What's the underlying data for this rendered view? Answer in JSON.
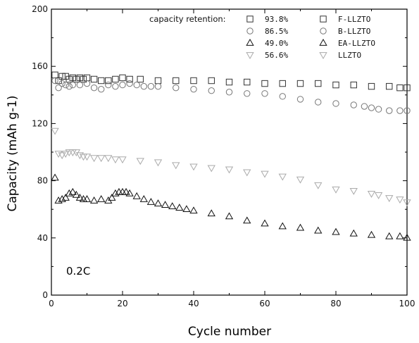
{
  "chart_data": {
    "type": "scatter",
    "title": "",
    "xlabel": "Cycle number",
    "ylabel": "Capacity (mAh g-1)",
    "xlim": [
      0,
      100
    ],
    "ylim": [
      0,
      200
    ],
    "xticks": [
      0,
      20,
      40,
      60,
      80,
      100
    ],
    "yticks": [
      0,
      40,
      80,
      120,
      160,
      200
    ],
    "grid": false,
    "annotation": "0.2C",
    "legend": {
      "position": "top-right",
      "title": "capacity retention:"
    },
    "series": [
      {
        "name": "F-LLZTO",
        "retention": "93.8%",
        "marker": "square",
        "color": "#333333",
        "points": [
          [
            1,
            154
          ],
          [
            2,
            150
          ],
          [
            3,
            153
          ],
          [
            4,
            153
          ],
          [
            5,
            151
          ],
          [
            6,
            152
          ],
          [
            7,
            151
          ],
          [
            8,
            152
          ],
          [
            9,
            151
          ],
          [
            10,
            152
          ],
          [
            12,
            151
          ],
          [
            14,
            150
          ],
          [
            16,
            150
          ],
          [
            18,
            151
          ],
          [
            20,
            152
          ],
          [
            22,
            151
          ],
          [
            25,
            151
          ],
          [
            30,
            150
          ],
          [
            35,
            150
          ],
          [
            40,
            150
          ],
          [
            45,
            150
          ],
          [
            50,
            149
          ],
          [
            55,
            149
          ],
          [
            60,
            148
          ],
          [
            65,
            148
          ],
          [
            70,
            148
          ],
          [
            75,
            148
          ],
          [
            80,
            147
          ],
          [
            85,
            147
          ],
          [
            90,
            146
          ],
          [
            95,
            146
          ],
          [
            98,
            145
          ],
          [
            100,
            145
          ]
        ]
      },
      {
        "name": "B-LLZTO",
        "retention": "86.5%",
        "marker": "circle",
        "color": "#777777",
        "points": [
          [
            1,
            150
          ],
          [
            2,
            145
          ],
          [
            3,
            148
          ],
          [
            4,
            147
          ],
          [
            5,
            146
          ],
          [
            6,
            147
          ],
          [
            8,
            147
          ],
          [
            10,
            148
          ],
          [
            12,
            145
          ],
          [
            14,
            144
          ],
          [
            16,
            147
          ],
          [
            18,
            146
          ],
          [
            20,
            147
          ],
          [
            22,
            148
          ],
          [
            24,
            147
          ],
          [
            26,
            146
          ],
          [
            28,
            146
          ],
          [
            30,
            146
          ],
          [
            35,
            145
          ],
          [
            40,
            144
          ],
          [
            45,
            143
          ],
          [
            50,
            142
          ],
          [
            55,
            141
          ],
          [
            60,
            141
          ],
          [
            65,
            139
          ],
          [
            70,
            137
          ],
          [
            75,
            135
          ],
          [
            80,
            134
          ],
          [
            85,
            133
          ],
          [
            88,
            132
          ],
          [
            90,
            131
          ],
          [
            92,
            130
          ],
          [
            95,
            129
          ],
          [
            98,
            129
          ],
          [
            100,
            129
          ]
        ]
      },
      {
        "name": "EA-LLZTO",
        "retention": "49.0%",
        "marker": "triangle-up",
        "color": "#111111",
        "points": [
          [
            1,
            82
          ],
          [
            2,
            66
          ],
          [
            3,
            67
          ],
          [
            4,
            68
          ],
          [
            5,
            71
          ],
          [
            6,
            72
          ],
          [
            7,
            70
          ],
          [
            8,
            68
          ],
          [
            9,
            67
          ],
          [
            10,
            67
          ],
          [
            12,
            66
          ],
          [
            14,
            67
          ],
          [
            16,
            66
          ],
          [
            17,
            68
          ],
          [
            18,
            71
          ],
          [
            19,
            72
          ],
          [
            20,
            72
          ],
          [
            21,
            72
          ],
          [
            22,
            71
          ],
          [
            24,
            69
          ],
          [
            26,
            67
          ],
          [
            28,
            65
          ],
          [
            30,
            64
          ],
          [
            32,
            63
          ],
          [
            34,
            62
          ],
          [
            36,
            61
          ],
          [
            38,
            60
          ],
          [
            40,
            59
          ],
          [
            45,
            57
          ],
          [
            50,
            55
          ],
          [
            55,
            52
          ],
          [
            60,
            50
          ],
          [
            65,
            48
          ],
          [
            70,
            47
          ],
          [
            75,
            45
          ],
          [
            80,
            44
          ],
          [
            85,
            43
          ],
          [
            90,
            42
          ],
          [
            95,
            41
          ],
          [
            98,
            41
          ],
          [
            100,
            40
          ]
        ]
      },
      {
        "name": "LLZTO",
        "retention": "56.6%",
        "marker": "triangle-down",
        "color": "#aaaaaa",
        "points": [
          [
            1,
            115
          ],
          [
            2,
            99
          ],
          [
            3,
            98
          ],
          [
            4,
            99
          ],
          [
            5,
            100
          ],
          [
            6,
            100
          ],
          [
            7,
            100
          ],
          [
            8,
            98
          ],
          [
            9,
            97
          ],
          [
            10,
            97
          ],
          [
            12,
            96
          ],
          [
            14,
            96
          ],
          [
            16,
            96
          ],
          [
            18,
            95
          ],
          [
            20,
            95
          ],
          [
            25,
            94
          ],
          [
            30,
            93
          ],
          [
            35,
            91
          ],
          [
            40,
            90
          ],
          [
            45,
            89
          ],
          [
            50,
            88
          ],
          [
            55,
            86
          ],
          [
            60,
            85
          ],
          [
            65,
            83
          ],
          [
            70,
            81
          ],
          [
            75,
            77
          ],
          [
            80,
            74
          ],
          [
            85,
            73
          ],
          [
            90,
            71
          ],
          [
            92,
            70
          ],
          [
            95,
            68
          ],
          [
            98,
            67
          ],
          [
            100,
            65
          ]
        ]
      }
    ]
  }
}
